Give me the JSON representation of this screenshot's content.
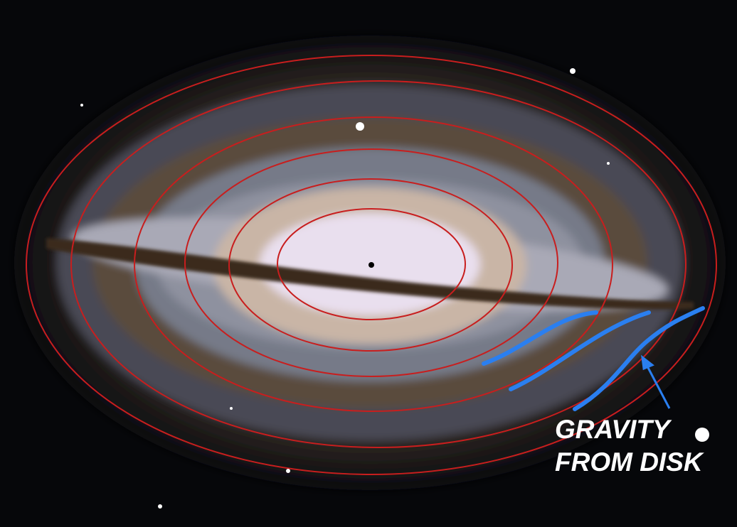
{
  "annotation": {
    "lines": [
      "GRAVITY",
      "FROM DISK"
    ]
  }
}
